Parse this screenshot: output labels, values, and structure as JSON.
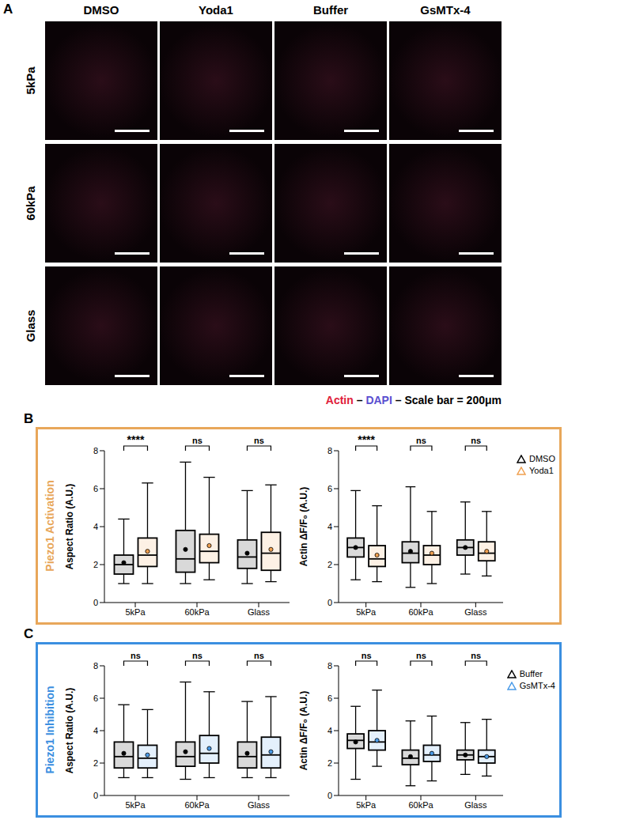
{
  "figure": {
    "panel_a": {
      "label": "A",
      "columns": [
        "DMSO",
        "Yoda1",
        "Buffer",
        "GsMTx-4"
      ],
      "rows": [
        "5kPa",
        "60kPa",
        "Glass"
      ],
      "legend": [
        {
          "text": "Actin",
          "color": "#e0203a"
        },
        {
          "text": "DAPI",
          "color": "#5a4fd0"
        },
        {
          "text": "Scale bar = 200μm",
          "color": "#000000"
        }
      ],
      "separator": "–"
    },
    "panels": [
      {
        "label": "B",
        "title": "Piezo1 Activation",
        "color": "#e8a75a"
      },
      {
        "label": "C",
        "title": "Piezo1 Inhibition",
        "color": "#3b8fe0"
      }
    ]
  },
  "chart_data": [
    {
      "type": "box",
      "y_label": "Aspect Ratio (A.U.)",
      "categories": [
        "5kPa",
        "60kPa",
        "Glass"
      ],
      "ylim": [
        0,
        8
      ],
      "yticks": [
        0,
        2,
        4,
        6,
        8
      ],
      "annotations": [
        "****",
        "ns",
        "ns"
      ],
      "series": [
        {
          "name": "DMSO",
          "color": "#000000",
          "marker": "triangle",
          "min": [
            1.0,
            1.0,
            1.0
          ],
          "q1": [
            1.5,
            1.6,
            1.8
          ],
          "median": [
            2.0,
            2.3,
            2.4
          ],
          "q3": [
            2.5,
            3.8,
            3.3
          ],
          "max": [
            4.4,
            7.4,
            5.9
          ],
          "mean": [
            2.1,
            2.8,
            2.6
          ]
        },
        {
          "name": "Yoda1",
          "color": "#f0a050",
          "marker": "triangle",
          "min": [
            1.0,
            1.2,
            1.1
          ],
          "q1": [
            1.9,
            2.1,
            1.7
          ],
          "median": [
            2.5,
            2.7,
            2.6
          ],
          "q3": [
            3.4,
            3.6,
            3.7
          ],
          "max": [
            6.3,
            6.6,
            6.2
          ],
          "mean": [
            2.7,
            3.0,
            2.8
          ]
        }
      ]
    },
    {
      "type": "box",
      "y_label": "Actin ΔF/F₀ (A.U.)",
      "categories": [
        "5kPa",
        "60kPa",
        "Glass"
      ],
      "ylim": [
        0,
        8
      ],
      "yticks": [
        0,
        2,
        4,
        6,
        8
      ],
      "annotations": [
        "****",
        "ns",
        "ns"
      ],
      "legend": "upper right",
      "series": [
        {
          "name": "DMSO",
          "color": "#000000",
          "marker": "triangle",
          "min": [
            1.2,
            0.8,
            1.5
          ],
          "q1": [
            2.4,
            2.1,
            2.5
          ],
          "median": [
            2.9,
            2.6,
            2.9
          ],
          "q3": [
            3.4,
            3.2,
            3.3
          ],
          "max": [
            5.9,
            6.1,
            5.3
          ],
          "mean": [
            2.9,
            2.7,
            2.9
          ]
        },
        {
          "name": "Yoda1",
          "color": "#f0a050",
          "marker": "triangle",
          "min": [
            1.1,
            1.0,
            1.4
          ],
          "q1": [
            1.9,
            2.0,
            2.2
          ],
          "median": [
            2.3,
            2.5,
            2.6
          ],
          "q3": [
            3.0,
            3.0,
            3.2
          ],
          "max": [
            5.1,
            4.8,
            4.8
          ],
          "mean": [
            2.5,
            2.6,
            2.7
          ]
        }
      ]
    },
    {
      "type": "box",
      "y_label": "Aspect Ratio (A.U.)",
      "categories": [
        "5kPa",
        "60kPa",
        "Glass"
      ],
      "ylim": [
        0,
        8
      ],
      "yticks": [
        0,
        2,
        4,
        6,
        8
      ],
      "annotations": [
        "ns",
        "ns",
        "ns"
      ],
      "series": [
        {
          "name": "Buffer",
          "color": "#000000",
          "marker": "triangle",
          "min": [
            1.1,
            1.0,
            1.1
          ],
          "q1": [
            1.7,
            1.8,
            1.7
          ],
          "median": [
            2.4,
            2.4,
            2.4
          ],
          "q3": [
            3.3,
            3.3,
            3.3
          ],
          "max": [
            5.6,
            7.0,
            5.8
          ],
          "mean": [
            2.6,
            2.7,
            2.6
          ]
        },
        {
          "name": "GsMTx-4",
          "color": "#4a9be8",
          "marker": "triangle",
          "min": [
            1.1,
            1.1,
            1.1
          ],
          "q1": [
            1.7,
            2.0,
            1.7
          ],
          "median": [
            2.3,
            2.6,
            2.5
          ],
          "q3": [
            3.1,
            3.7,
            3.6
          ],
          "max": [
            5.3,
            6.4,
            6.1
          ],
          "mean": [
            2.5,
            2.9,
            2.7
          ]
        }
      ]
    },
    {
      "type": "box",
      "y_label": "Actin ΔF/F₀ (A.U.)",
      "categories": [
        "5kPa",
        "60kPa",
        "Glass"
      ],
      "ylim": [
        0,
        8
      ],
      "yticks": [
        0,
        2,
        4,
        6,
        8
      ],
      "annotations": [
        "ns",
        "ns",
        "ns"
      ],
      "legend": "upper right",
      "series": [
        {
          "name": "Buffer",
          "color": "#000000",
          "marker": "triangle",
          "min": [
            1.0,
            0.6,
            1.3
          ],
          "q1": [
            2.9,
            1.9,
            2.2
          ],
          "median": [
            3.4,
            2.3,
            2.5
          ],
          "q3": [
            3.8,
            2.8,
            2.8
          ],
          "max": [
            5.5,
            4.6,
            4.5
          ],
          "mean": [
            3.3,
            2.4,
            2.5
          ]
        },
        {
          "name": "GsMTx-4",
          "color": "#4a9be8",
          "marker": "triangle",
          "min": [
            1.8,
            0.9,
            1.2
          ],
          "q1": [
            2.8,
            2.1,
            2.0
          ],
          "median": [
            3.3,
            2.5,
            2.4
          ],
          "q3": [
            4.0,
            3.1,
            2.8
          ],
          "max": [
            6.5,
            4.9,
            4.7
          ],
          "mean": [
            3.4,
            2.6,
            2.4
          ]
        }
      ]
    }
  ]
}
